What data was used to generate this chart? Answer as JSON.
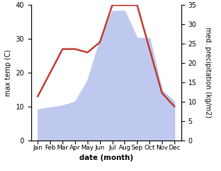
{
  "months": [
    "Jan",
    "Feb",
    "Mar",
    "Apr",
    "May",
    "Jun",
    "Jul",
    "Aug",
    "Sep",
    "Oct",
    "Nov",
    "Dec"
  ],
  "max_temp": [
    13,
    20,
    27,
    27,
    26,
    29,
    40,
    40,
    40,
    27,
    14,
    10
  ],
  "precipitation": [
    8,
    8.5,
    9,
    10,
    15.5,
    26,
    33.5,
    33.5,
    26.5,
    26.5,
    13,
    10
  ],
  "temp_ylim": [
    0,
    40
  ],
  "precip_ylim": [
    0,
    35
  ],
  "temp_color": "#c0392b",
  "precip_fill_color": "#bfc9f0",
  "xlabel": "date (month)",
  "ylabel_left": "max temp (C)",
  "ylabel_right": "med. precipitation (kg/m2)",
  "temp_yticks": [
    0,
    10,
    20,
    30,
    40
  ],
  "precip_yticks": [
    0,
    5,
    10,
    15,
    20,
    25,
    30,
    35
  ],
  "figsize": [
    3.18,
    2.47
  ],
  "dpi": 100
}
